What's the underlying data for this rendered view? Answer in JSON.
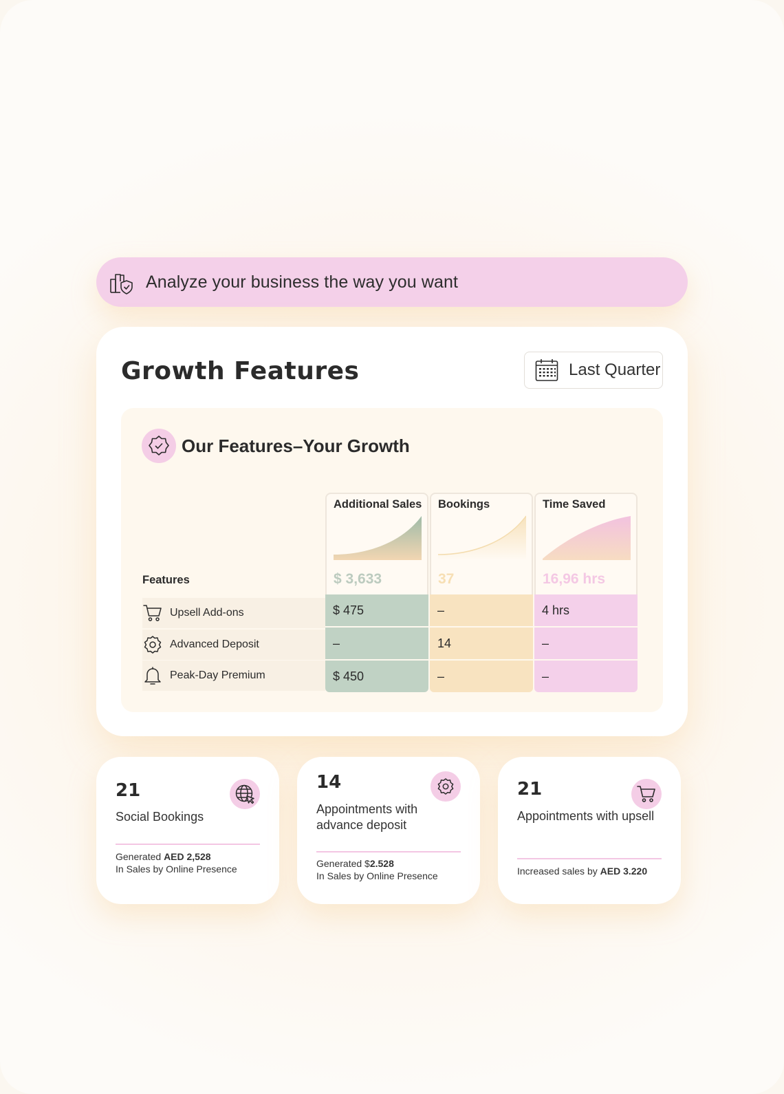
{
  "banner": {
    "icon": "business-shield-icon",
    "text": "Analyze your business the way you want"
  },
  "card": {
    "title": "Growth Features",
    "period": {
      "icon": "calendar-icon",
      "label": "Last Quarter"
    },
    "section": {
      "icon": "badge-check-icon",
      "title": "Our Features–Your Growth",
      "features_label": "Features",
      "metrics": [
        {
          "label": "Additional Sales",
          "total": "$ 3,633",
          "color": "#c0d2c4"
        },
        {
          "label": "Bookings",
          "total": "37",
          "color": "#f8e3c0"
        },
        {
          "label": "Time Saved",
          "total": "16,96 hrs",
          "color": "#f4d0ea"
        }
      ],
      "rows": [
        {
          "icon": "cart-icon",
          "feature": "Upsell Add-ons",
          "sales": "$ 475",
          "bookings": "–",
          "time": "4 hrs"
        },
        {
          "icon": "gear-badge-icon",
          "feature": "Advanced Deposit",
          "sales": "–",
          "bookings": "14",
          "time": "–"
        },
        {
          "icon": "bell-icon",
          "feature": "Peak-Day Premium",
          "sales": "$ 450",
          "bookings": "–",
          "time": "–"
        }
      ]
    }
  },
  "stats": [
    {
      "icon": "globe-cursor-icon",
      "number": "21",
      "label": "Social Bookings",
      "foot_prefix": "Generated ",
      "foot_bold": "AED 2,528",
      "foot_line2": "In Sales by Online Presence"
    },
    {
      "icon": "gear-badge-icon",
      "number": "14",
      "label": "Appointments with advance deposit",
      "foot_prefix": "Generated $",
      "foot_bold": "2.528",
      "foot_line2": "In Sales by Online Presence"
    },
    {
      "icon": "cart-icon",
      "number": "21",
      "label": "Appointments with upsell",
      "foot_prefix": "Increased sales by ",
      "foot_bold": "AED 3.220",
      "foot_line2": ""
    }
  ]
}
